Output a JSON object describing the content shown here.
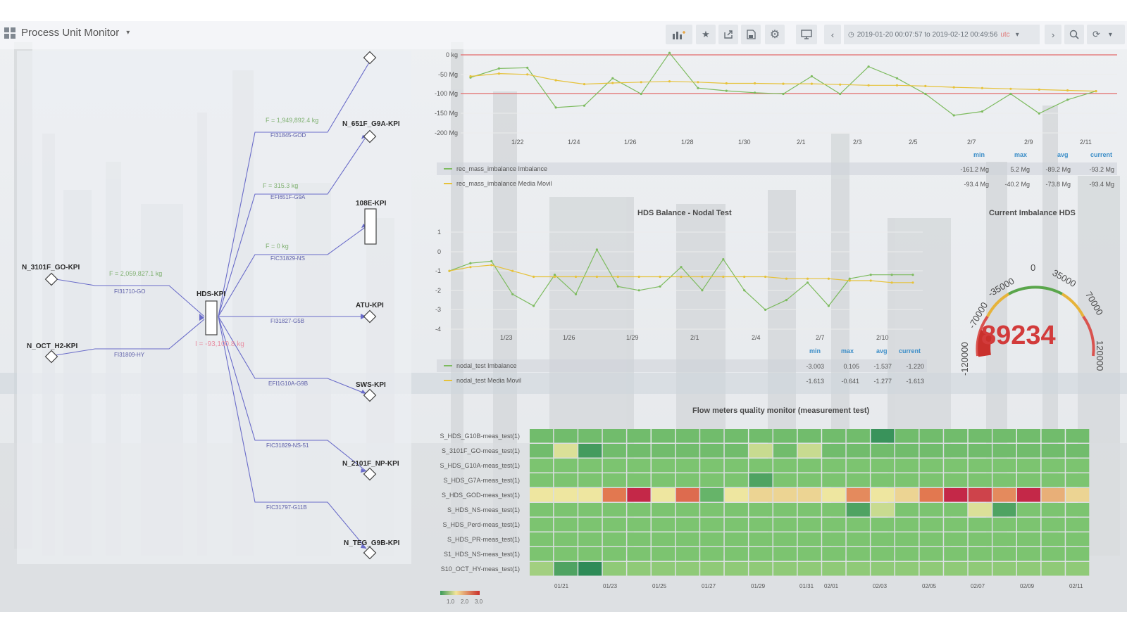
{
  "header": {
    "dashboard_title": "Process Unit Monitor",
    "time_range": "2019-01-20 00:07:57 to 2019-02-12 00:49:56",
    "timezone": "utc",
    "icons": [
      "add-panel-icon",
      "star-icon",
      "share-icon",
      "save-icon",
      "settings-icon",
      "tv-mode-icon",
      "chevron-left-icon",
      "clock-icon",
      "chevron-right-icon",
      "zoom-icon",
      "refresh-icon"
    ]
  },
  "diagram": {
    "nodes": [
      {
        "name": "N_3101F_GO-KPI"
      },
      {
        "name": "N_OCT_H2-KPI"
      },
      {
        "name": "HDS-KPI"
      },
      {
        "name": "N_651F_G9A-KPI"
      },
      {
        "name": "108E-KPI"
      },
      {
        "name": "ATU-KPI"
      },
      {
        "name": "SWS-KPI"
      },
      {
        "name": "N_2101F_NP-KPI"
      },
      {
        "name": "N_TEG_G9B-KPI"
      }
    ],
    "edge_labels": [
      "FI31710-GO",
      "FI31809-HY",
      "FI31845-GOD",
      "EFI651F-G9A",
      "FIC31829-NS",
      "FI31827-G5B",
      "EFI1G10A-G9B",
      "FIC31829-NS-51",
      "FIC31797-G11B"
    ],
    "flows": [
      "F = 1,949,892.4 kg",
      "F = 315.3 kg",
      "F = 0 kg",
      "F = 2,059,827.1 kg"
    ],
    "imbalance": "I = -93,100.8 kg"
  },
  "top_chart": {
    "y_ticks": [
      "0 kg",
      "-50 Mg",
      "-100 Mg",
      "-150 Mg",
      "-200 Mg"
    ],
    "x_ticks": [
      "1/22",
      "1/24",
      "1/26",
      "1/28",
      "1/30",
      "2/1",
      "2/3",
      "2/5",
      "2/7",
      "2/9",
      "2/11"
    ],
    "legend_headers": [
      "min",
      "max",
      "avg",
      "current"
    ],
    "legend": [
      {
        "name": "rec_mass_imbalance Imbalance",
        "color": "#7dbb5f",
        "min": "-161.2 Mg",
        "max": "5.2 Mg",
        "avg": "-89.2 Mg",
        "current": "-93.2 Mg"
      },
      {
        "name": "rec_mass_imbalance Media Movil",
        "color": "#e6c23a",
        "min": "-93.4 Mg",
        "max": "-40.2 Mg",
        "avg": "-73.8 Mg",
        "current": "-93.4 Mg"
      }
    ]
  },
  "nodal_chart": {
    "title": "HDS Balance - Nodal Test",
    "y_ticks": [
      "1",
      "0",
      "-1",
      "-2",
      "-3",
      "-4"
    ],
    "x_ticks": [
      "1/23",
      "1/26",
      "1/29",
      "2/1",
      "2/4",
      "2/7",
      "2/10"
    ],
    "legend_headers": [
      "min",
      "max",
      "avg",
      "current"
    ],
    "legend": [
      {
        "name": "nodal_test Imbalance",
        "color": "#7dbb5f",
        "min": "-3.003",
        "max": "0.105",
        "avg": "-1.537",
        "current": "-1.220"
      },
      {
        "name": "nodal_test Media Movil",
        "color": "#e6c23a",
        "min": "-1.613",
        "max": "-0.641",
        "avg": "-1.277",
        "current": "-1.613"
      }
    ]
  },
  "gauge": {
    "title": "Current Imbalance HDS",
    "value": "89234",
    "value_number": 89234,
    "ticks": [
      "-120000",
      "-70000",
      "-35000",
      "0",
      "35000",
      "70000",
      "120000"
    ],
    "min": -120000,
    "max": 120000
  },
  "heatmap": {
    "title": "Flow meters quality monitor (measurement test)",
    "rows": [
      "S_HDS_G10B-meas_test(1)",
      "S_3101F_GO-meas_test(1)",
      "S_HDS_G10A-meas_test(1)",
      "S_HDS_G7A-meas_test(1)",
      "S_HDS_GOD-meas_test(1)",
      "S_HDS_NS-meas_test(1)",
      "S_HDS_Perd-meas_test(1)",
      "S_HDS_PR-meas_test(1)",
      "S1_HDS_NS-meas_test(1)",
      "S10_OCT_HY-meas_test(1)"
    ],
    "x_ticks": [
      "01/21",
      "01/23",
      "01/25",
      "01/27",
      "01/29",
      "01/31",
      "02/01",
      "02/03",
      "02/05",
      "02/07",
      "02/09",
      "02/11"
    ],
    "scale_labels": [
      "1.0",
      "2.0",
      "3.0"
    ]
  },
  "chart_data": [
    {
      "type": "line",
      "x": [
        "1/20",
        "1/21",
        "1/22",
        "1/23",
        "1/24",
        "1/25",
        "1/26",
        "1/27",
        "1/28",
        "1/29",
        "1/30",
        "1/31",
        "2/1",
        "2/2",
        "2/3",
        "2/4",
        "2/5",
        "2/6",
        "2/7",
        "2/8",
        "2/9",
        "2/10",
        "2/11"
      ],
      "series": [
        {
          "name": "rec_mass_imbalance Imbalance",
          "values": [
            -58,
            -35,
            -33,
            -135,
            -130,
            -60,
            -100,
            5,
            -85,
            -92,
            -97,
            -100,
            -55,
            -100,
            -30,
            -60,
            -100,
            -155,
            -145,
            -100,
            -150,
            -115,
            -93
          ]
        },
        {
          "name": "rec_mass_imbalance Media Movil",
          "values": [
            -55,
            -48,
            -50,
            -65,
            -75,
            -72,
            -70,
            -68,
            -70,
            -73,
            -73,
            -74,
            -74,
            -76,
            -78,
            -78,
            -80,
            -83,
            -85,
            -87,
            -89,
            -91,
            -93
          ]
        }
      ],
      "ylim": [
        -200,
        0
      ],
      "thresholds": [
        0,
        -100
      ]
    },
    {
      "type": "line",
      "title": "HDS Balance - Nodal Test",
      "x": [
        "1/20",
        "1/21",
        "1/22",
        "1/23",
        "1/24",
        "1/25",
        "1/26",
        "1/27",
        "1/28",
        "1/29",
        "1/30",
        "1/31",
        "2/1",
        "2/2",
        "2/3",
        "2/4",
        "2/5",
        "2/6",
        "2/7",
        "2/8",
        "2/9",
        "2/10",
        "2/11"
      ],
      "series": [
        {
          "name": "nodal_test Imbalance",
          "values": [
            -1.0,
            -0.6,
            -0.5,
            -2.2,
            -2.8,
            -1.2,
            -2.2,
            0.1,
            -1.8,
            -2.0,
            -1.8,
            -0.8,
            -2.0,
            -0.4,
            -2.0,
            -3.0,
            -2.5,
            -1.6,
            -2.8,
            -1.4,
            -1.2,
            -1.2,
            -1.2
          ]
        },
        {
          "name": "nodal_test Media Movil",
          "values": [
            -1.0,
            -0.8,
            -0.7,
            -1.0,
            -1.3,
            -1.3,
            -1.3,
            -1.3,
            -1.3,
            -1.3,
            -1.3,
            -1.3,
            -1.3,
            -1.3,
            -1.3,
            -1.3,
            -1.4,
            -1.4,
            -1.4,
            -1.5,
            -1.5,
            -1.6,
            -1.6
          ]
        }
      ],
      "ylim": [
        -4,
        1
      ]
    },
    {
      "type": "heatmap",
      "title": "Flow meters quality monitor (measurement test)",
      "rows": [
        "S_HDS_G10B-meas_test(1)",
        "S_3101F_GO-meas_test(1)",
        "S_HDS_G10A-meas_test(1)",
        "S_HDS_G7A-meas_test(1)",
        "S_HDS_GOD-meas_test(1)",
        "S_HDS_NS-meas_test(1)",
        "S_HDS_Perd-meas_test(1)",
        "S_HDS_PR-meas_test(1)",
        "S1_HDS_NS-meas_test(1)",
        "S10_OCT_HY-meas_test(1)"
      ],
      "columns": 23,
      "values": [
        [
          1.1,
          1.1,
          1.1,
          1.1,
          1.1,
          1.1,
          1.1,
          1.1,
          1.1,
          1.1,
          1.1,
          1.1,
          1.1,
          1.1,
          0.6,
          1.1,
          1.1,
          1.1,
          1.1,
          1.1,
          1.1,
          1.1,
          1.1
        ],
        [
          1.1,
          1.7,
          0.7,
          1.1,
          1.1,
          1.1,
          1.1,
          1.1,
          1.1,
          1.6,
          1.1,
          1.6,
          1.1,
          1.1,
          1.1,
          1.1,
          1.1,
          1.1,
          1.1,
          1.1,
          1.1,
          1.1,
          1.1
        ],
        [
          1.2,
          1.2,
          1.2,
          1.2,
          1.2,
          1.2,
          1.2,
          1.2,
          1.2,
          1.2,
          1.2,
          1.2,
          1.2,
          1.2,
          1.2,
          1.2,
          1.2,
          1.2,
          1.2,
          1.2,
          1.2,
          1.2,
          1.2
        ],
        [
          1.2,
          1.2,
          1.2,
          1.2,
          1.2,
          1.2,
          1.2,
          1.2,
          1.2,
          0.8,
          1.2,
          1.2,
          1.2,
          1.2,
          1.2,
          1.2,
          1.2,
          1.2,
          1.2,
          1.2,
          1.2,
          1.2,
          1.2
        ],
        [
          1.8,
          1.8,
          1.8,
          2.4,
          3.0,
          1.8,
          2.5,
          1.0,
          1.8,
          1.9,
          1.9,
          1.9,
          1.8,
          2.3,
          1.8,
          1.9,
          2.4,
          3.0,
          2.8,
          2.3,
          3.0,
          2.1,
          1.9
        ],
        [
          1.2,
          1.2,
          1.2,
          1.2,
          1.2,
          1.2,
          1.2,
          1.2,
          1.2,
          1.2,
          1.2,
          1.2,
          1.2,
          0.8,
          1.6,
          1.2,
          1.2,
          1.2,
          1.7,
          0.8,
          1.2,
          1.2,
          1.2
        ],
        [
          1.2,
          1.2,
          1.2,
          1.2,
          1.2,
          1.2,
          1.2,
          1.2,
          1.2,
          1.2,
          1.2,
          1.2,
          1.2,
          1.2,
          1.2,
          1.2,
          1.2,
          1.2,
          1.2,
          1.2,
          1.2,
          1.2,
          1.2
        ],
        [
          1.2,
          1.2,
          1.2,
          1.2,
          1.2,
          1.2,
          1.2,
          1.2,
          1.2,
          1.2,
          1.2,
          1.2,
          1.2,
          1.2,
          1.2,
          1.2,
          1.2,
          1.2,
          1.2,
          1.2,
          1.2,
          1.2,
          1.2
        ],
        [
          1.2,
          1.2,
          1.2,
          1.2,
          1.2,
          1.2,
          1.2,
          1.2,
          1.2,
          1.2,
          1.2,
          1.2,
          1.2,
          1.2,
          1.2,
          1.2,
          1.2,
          1.2,
          1.2,
          1.2,
          1.2,
          1.2,
          1.2
        ],
        [
          1.4,
          0.8,
          0.5,
          1.3,
          1.3,
          1.3,
          1.3,
          1.3,
          1.3,
          1.3,
          1.3,
          1.3,
          1.3,
          1.3,
          1.3,
          1.3,
          1.3,
          1.3,
          1.3,
          1.3,
          1.3,
          1.3,
          1.3
        ]
      ]
    }
  ]
}
